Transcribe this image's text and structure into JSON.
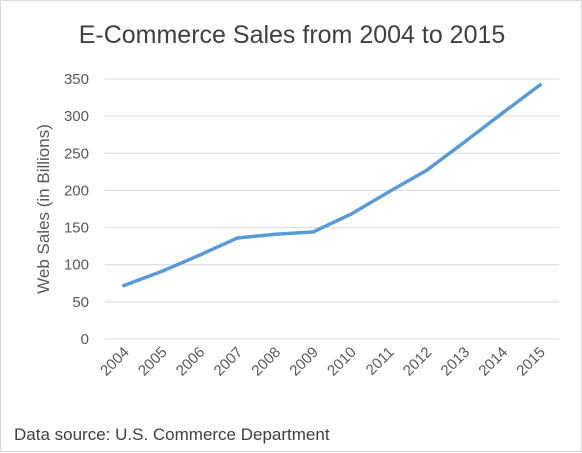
{
  "chart_data": {
    "type": "line",
    "title": "E-Commerce Sales from 2004 to 2015",
    "xlabel": "",
    "ylabel": "Web Sales (in Billions)",
    "categories": [
      "2004",
      "2005",
      "2006",
      "2007",
      "2008",
      "2009",
      "2010",
      "2011",
      "2012",
      "2013",
      "2014",
      "2015"
    ],
    "series": [
      {
        "values": [
          72,
          91,
          113,
          136,
          141,
          144,
          168,
          198,
          227,
          265,
          304,
          342
        ]
      }
    ],
    "yticks": [
      "0",
      "50",
      "100",
      "150",
      "200",
      "250",
      "300",
      "350"
    ],
    "ylim": [
      0,
      350
    ],
    "grid": true,
    "legend": "none",
    "line_color": "#5b9bd5",
    "grid_color": "#d9d9d9",
    "source": "Data source: U.S. Commerce Department"
  }
}
